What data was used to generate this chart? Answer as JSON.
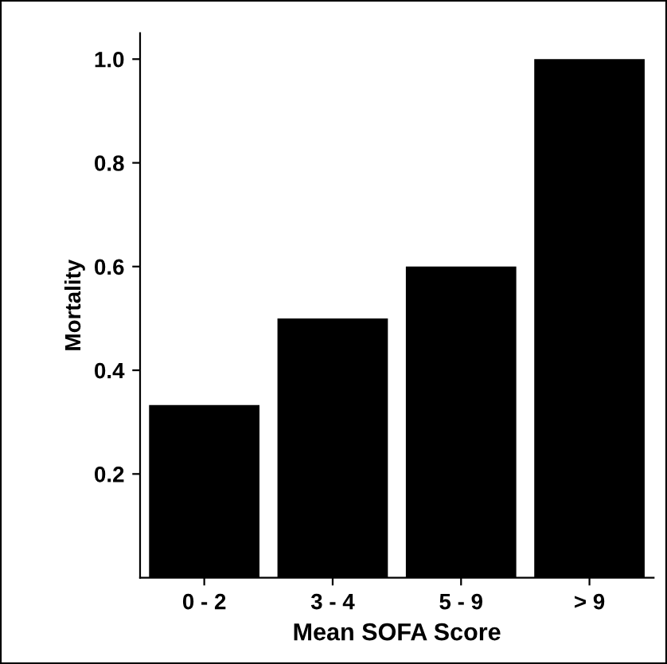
{
  "chart_data": {
    "type": "bar",
    "xlabel": "Mean SOFA Score",
    "ylabel": "Mortality",
    "categories": [
      "0 - 2",
      "3 - 4",
      "5 - 9",
      "> 9"
    ],
    "values": [
      0.333,
      0.5,
      0.6,
      1.0
    ],
    "color": "#000000",
    "ylim": [
      0,
      1.05
    ],
    "yticks": [
      0.2,
      0.4,
      0.6,
      0.8,
      {
        "value": 1.0,
        "label": "1.0"
      }
    ],
    "grid": false
  }
}
